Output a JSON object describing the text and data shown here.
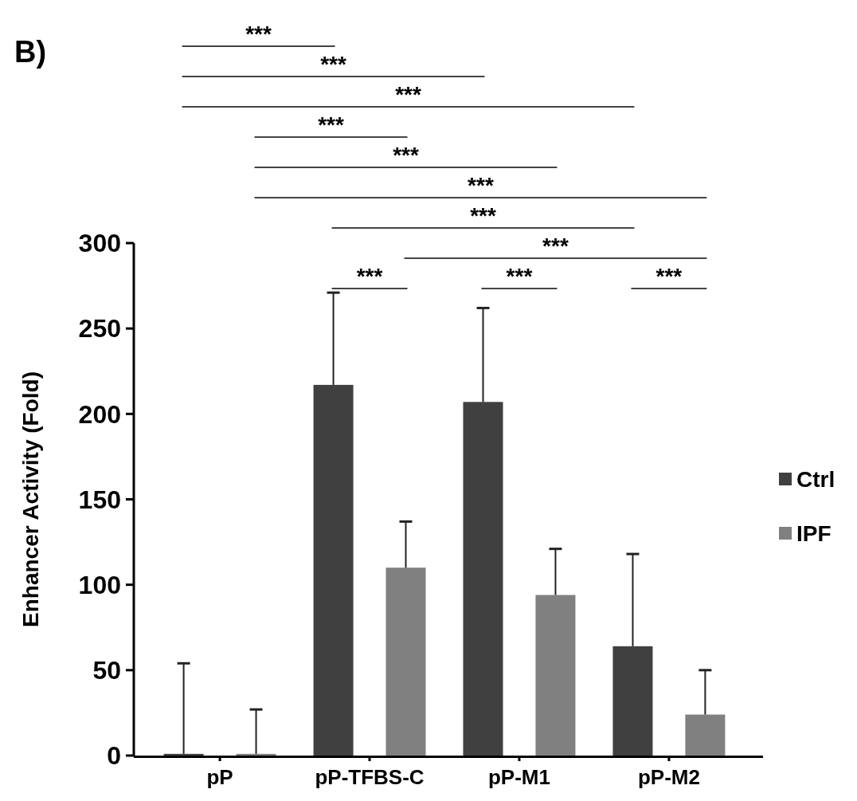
{
  "chart_data": {
    "type": "bar",
    "ylabel": "Enhancer Activity (Fold)",
    "categories": [
      "pP",
      "pP-TFBS-C",
      "pP-M1",
      "pP-M2"
    ],
    "series": [
      {
        "name": "Ctrl",
        "color": "#404040",
        "values": [
          1,
          217,
          207,
          64
        ],
        "errors": [
          [
            1,
            54
          ],
          [
            217,
            271
          ],
          [
            207,
            262
          ],
          [
            64,
            118
          ]
        ]
      },
      {
        "name": "IPF",
        "color": "#808080",
        "values": [
          1,
          110,
          94,
          24
        ],
        "errors": [
          [
            1,
            27
          ],
          [
            110,
            137
          ],
          [
            94,
            121
          ],
          [
            24,
            50
          ]
        ]
      }
    ],
    "ylim": [
      0,
      300
    ],
    "yticks": [
      0,
      50,
      100,
      150,
      200,
      250,
      300
    ],
    "grid": false,
    "legend": "right",
    "annotations": [
      "B)",
      "***",
      "***",
      "***",
      "***",
      "***",
      "***",
      "***",
      "***",
      "***",
      "***",
      "***"
    ]
  }
}
